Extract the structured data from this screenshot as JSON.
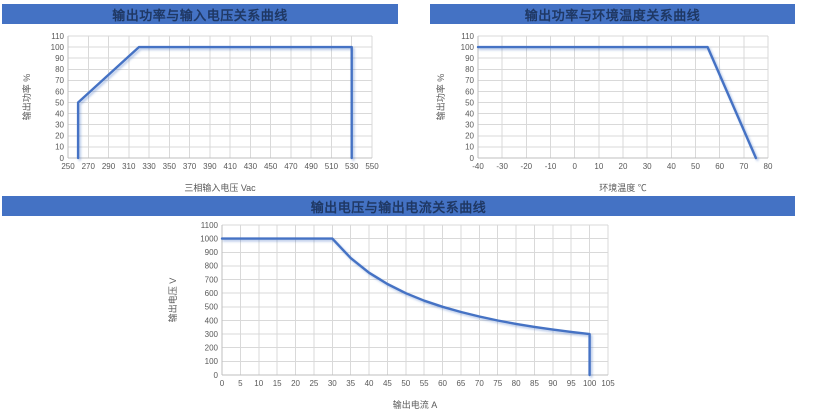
{
  "panels": [
    {
      "title": "输出功率与输入电压关系曲线"
    },
    {
      "title": "输出功率与环境温度关系曲线"
    },
    {
      "title": "输出电压与输出电流关系曲线"
    }
  ],
  "colors": {
    "title_bar_bg": "#4472C4",
    "title_text": "#1F3864",
    "line": "#4472C4",
    "grid": "#D9D9D9",
    "axis": "#BFBFBF",
    "tick_text": "#595959"
  },
  "chart_data": [
    {
      "type": "line",
      "title": "输出功率与输入电压关系曲线",
      "xlabel": "三相输入电压  Vac",
      "ylabel": "输出功率 %",
      "xlim": [
        250,
        550
      ],
      "ylim": [
        0,
        110
      ],
      "x_ticks": [
        250,
        270,
        290,
        310,
        330,
        350,
        370,
        390,
        410,
        430,
        450,
        470,
        490,
        510,
        530,
        550
      ],
      "y_ticks": [
        0,
        10,
        20,
        30,
        40,
        50,
        60,
        70,
        80,
        90,
        100,
        110
      ],
      "grid": true,
      "legend": false,
      "series": [
        {
          "name": "output-power-percent-vs-input-voltage",
          "color": "#4472C4",
          "points": [
            [
              260,
              0
            ],
            [
              260,
              50
            ],
            [
              320,
              100
            ],
            [
              530,
              100
            ],
            [
              530,
              0
            ]
          ]
        }
      ]
    },
    {
      "type": "line",
      "title": "输出功率与环境温度关系曲线",
      "xlabel": "环境温度 ℃",
      "ylabel": "输出功率 %",
      "xlim": [
        -40,
        80
      ],
      "ylim": [
        0,
        110
      ],
      "x_ticks": [
        -40,
        -30,
        -20,
        -10,
        0,
        10,
        20,
        30,
        40,
        50,
        60,
        70,
        80
      ],
      "y_ticks": [
        0,
        10,
        20,
        30,
        40,
        50,
        60,
        70,
        80,
        90,
        100,
        110
      ],
      "grid": true,
      "legend": false,
      "series": [
        {
          "name": "output-power-percent-vs-ambient-temperature",
          "color": "#4472C4",
          "points": [
            [
              -40,
              100
            ],
            [
              55,
              100
            ],
            [
              75,
              0
            ]
          ]
        }
      ]
    },
    {
      "type": "line",
      "title": "输出电压与输出电流关系曲线",
      "xlabel": "输出电流  A",
      "ylabel": "输出电压  V",
      "xlim": [
        0,
        105
      ],
      "ylim": [
        0,
        1100
      ],
      "x_ticks": [
        0,
        5,
        10,
        15,
        20,
        25,
        30,
        35,
        40,
        45,
        50,
        55,
        60,
        65,
        70,
        75,
        80,
        85,
        90,
        95,
        100,
        105
      ],
      "y_ticks": [
        0,
        100,
        200,
        300,
        400,
        500,
        600,
        700,
        800,
        900,
        1000,
        1100
      ],
      "grid": true,
      "legend": false,
      "series": [
        {
          "name": "output-voltage-vs-output-current-constant-power",
          "color": "#4472C4",
          "points": [
            [
              0,
              1000
            ],
            [
              30,
              1000
            ],
            [
              35,
              857
            ],
            [
              40,
              750
            ],
            [
              45,
              667
            ],
            [
              50,
              600
            ],
            [
              55,
              545
            ],
            [
              60,
              500
            ],
            [
              65,
              462
            ],
            [
              70,
              429
            ],
            [
              75,
              400
            ],
            [
              80,
              375
            ],
            [
              85,
              353
            ],
            [
              90,
              333
            ],
            [
              95,
              316
            ],
            [
              100,
              300
            ],
            [
              100,
              0
            ]
          ]
        }
      ]
    }
  ]
}
